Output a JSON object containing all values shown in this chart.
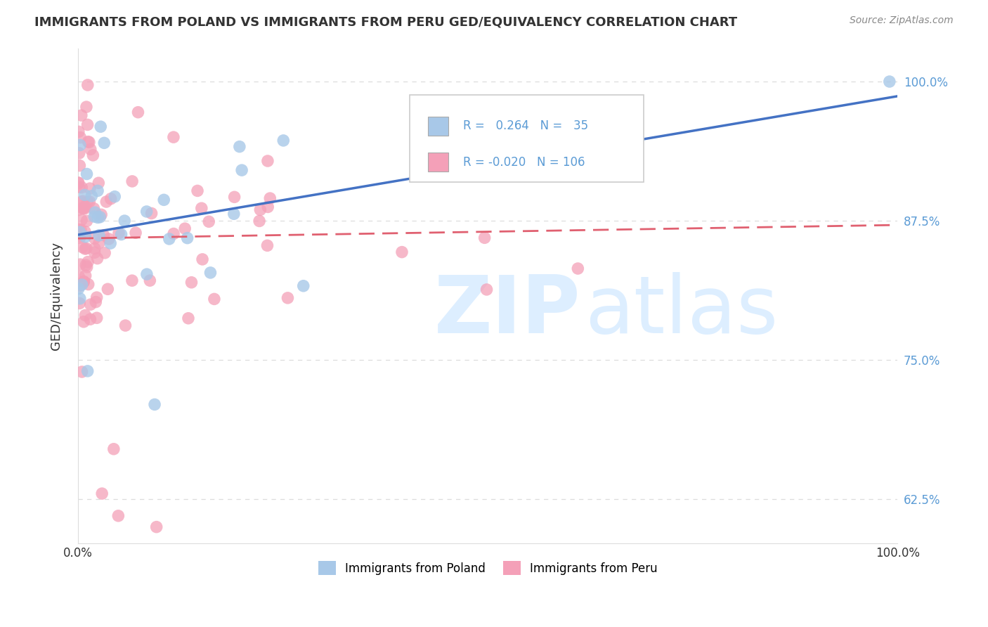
{
  "title": "IMMIGRANTS FROM POLAND VS IMMIGRANTS FROM PERU GED/EQUIVALENCY CORRELATION CHART",
  "source": "Source: ZipAtlas.com",
  "ylabel": "GED/Equivalency",
  "xlim": [
    0.0,
    1.0
  ],
  "ylim": [
    0.585,
    1.03
  ],
  "ytick_vals": [
    0.625,
    0.75,
    0.875,
    1.0
  ],
  "ytick_labels": [
    "62.5%",
    "75.0%",
    "87.5%",
    "100.0%"
  ],
  "xtick_vals": [
    0.0,
    1.0
  ],
  "xtick_labels": [
    "0.0%",
    "100.0%"
  ],
  "legend_R1": "0.264",
  "legend_N1": "35",
  "legend_R2": "-0.020",
  "legend_N2": "106",
  "poland_color": "#a8c8e8",
  "peru_color": "#f4a0b8",
  "poland_line_color": "#4472c4",
  "peru_line_color": "#e06070",
  "grid_color": "#dddddd",
  "text_color": "#333333",
  "axis_tick_color": "#5b9bd5",
  "background_color": "#ffffff",
  "watermark_text": "ZIPatlas",
  "watermark_color": "#ddeeff",
  "legend_border_color": "#cccccc",
  "source_color": "#888888",
  "title_fontsize": 13,
  "axis_fontsize": 12,
  "scatter_size": 160
}
